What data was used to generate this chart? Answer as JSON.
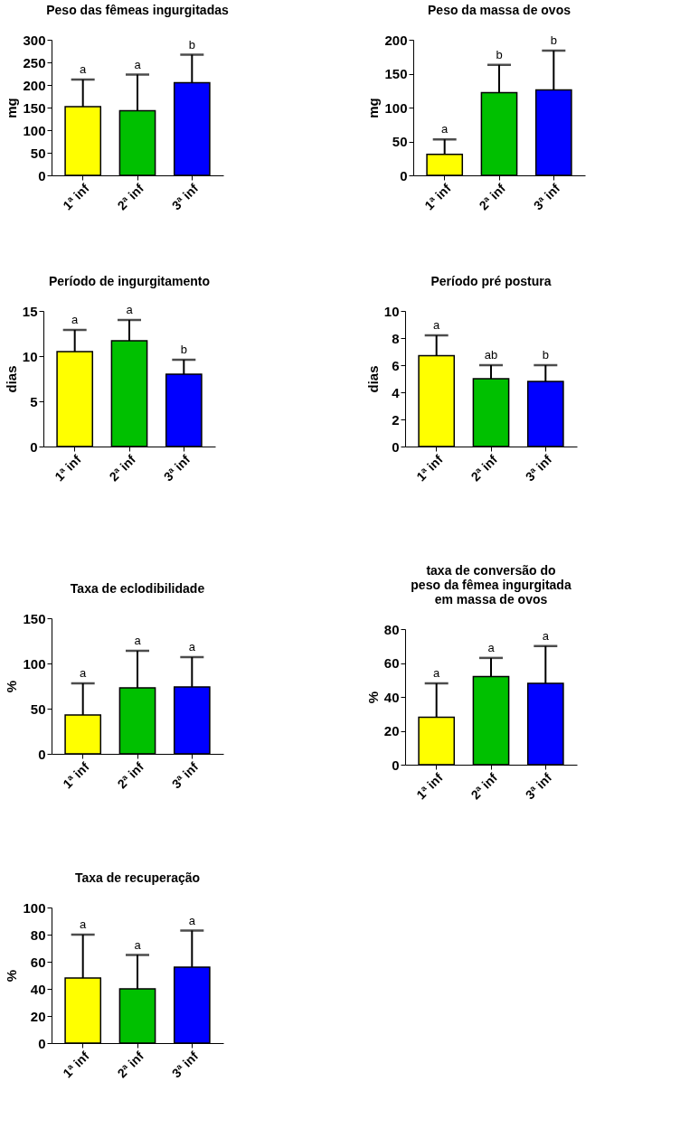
{
  "chart_data": [
    {
      "type": "bar",
      "title": "Peso das fêmeas ingurgitadas",
      "ylabel": "mg",
      "categories": [
        "1ª inf",
        "2ª inf",
        "3ª inf"
      ],
      "values": [
        152,
        143,
        205
      ],
      "colors": [
        "#ffff00",
        "#00c000",
        "#0000ff"
      ],
      "errors": [
        [
          152,
          212
        ],
        [
          143,
          223
        ],
        [
          205,
          267
        ]
      ],
      "ylim": [
        0,
        300
      ],
      "yticks": [
        0,
        50,
        100,
        150,
        200,
        250,
        300
      ],
      "annotations": [
        {
          "text": "a",
          "x": "1ª inf",
          "y": 212
        },
        {
          "text": "a",
          "x": "2ª inf",
          "y": 223
        },
        {
          "text": "b",
          "x": "3ª inf",
          "y": 267
        }
      ]
    },
    {
      "type": "bar",
      "title": "Peso da massa de ovos",
      "ylabel": "mg",
      "categories": [
        "1ª inf",
        "2ª inf",
        "3ª inf"
      ],
      "values": [
        31,
        122,
        126
      ],
      "colors": [
        "#ffff00",
        "#00c000",
        "#0000ff"
      ],
      "errors": [
        [
          31,
          53
        ],
        [
          122,
          163
        ],
        [
          126,
          184
        ]
      ],
      "ylim": [
        0,
        200
      ],
      "yticks": [
        0,
        50,
        100,
        150,
        200
      ],
      "annotations": [
        {
          "text": "a",
          "x": "1ª inf",
          "y": 53
        },
        {
          "text": "b",
          "x": "2ª inf",
          "y": 163
        },
        {
          "text": "b",
          "x": "3ª inf",
          "y": 184
        }
      ]
    },
    {
      "type": "bar",
      "title": "Período de ingurgitamento",
      "ylabel": "dias",
      "categories": [
        "1ª inf",
        "2ª inf",
        "3ª inf"
      ],
      "values": [
        10.5,
        11.7,
        8.0
      ],
      "colors": [
        "#ffff00",
        "#00c000",
        "#0000ff"
      ],
      "errors": [
        [
          10.5,
          12.9
        ],
        [
          11.7,
          14.0
        ],
        [
          8.0,
          9.6
        ]
      ],
      "ylim": [
        0,
        15
      ],
      "yticks": [
        0,
        5,
        10,
        15
      ],
      "annotations": [
        {
          "text": "a",
          "x": "1ª inf",
          "y": 12.9
        },
        {
          "text": "a",
          "x": "2ª inf",
          "y": 14.0
        },
        {
          "text": "b",
          "x": "3ª inf",
          "y": 9.6
        }
      ]
    },
    {
      "type": "bar",
      "title": "Período pré postura",
      "ylabel": "dias",
      "categories": [
        "1ª inf",
        "2ª inf",
        "3ª inf"
      ],
      "values": [
        6.7,
        5.0,
        4.8
      ],
      "colors": [
        "#ffff00",
        "#00c000",
        "#0000ff"
      ],
      "errors": [
        [
          6.7,
          8.2
        ],
        [
          5.0,
          6.0
        ],
        [
          4.8,
          6.0
        ]
      ],
      "ylim": [
        0,
        10
      ],
      "yticks": [
        0,
        2,
        4,
        6,
        8,
        10
      ],
      "annotations": [
        {
          "text": "a",
          "x": "1ª inf",
          "y": 8.2
        },
        {
          "text": "ab",
          "x": "2ª inf",
          "y": 6.0
        },
        {
          "text": "b",
          "x": "3ª inf",
          "y": 6.0
        }
      ]
    },
    {
      "type": "bar",
      "title": "Taxa de eclodibilidade",
      "ylabel": "%",
      "categories": [
        "1ª inf",
        "2ª inf",
        "3ª inf"
      ],
      "values": [
        43,
        73,
        74
      ],
      "colors": [
        "#ffff00",
        "#00c000",
        "#0000ff"
      ],
      "errors": [
        [
          43,
          78
        ],
        [
          73,
          114
        ],
        [
          74,
          107
        ]
      ],
      "ylim": [
        0,
        150
      ],
      "yticks": [
        0,
        50,
        100,
        150
      ],
      "annotations": [
        {
          "text": "a",
          "x": "1ª inf",
          "y": 78
        },
        {
          "text": "a",
          "x": "2ª inf",
          "y": 114
        },
        {
          "text": "a",
          "x": "3ª inf",
          "y": 107
        }
      ]
    },
    {
      "type": "bar",
      "title": "taxa de conversão do\npeso da fêmea ingurgitada\nem massa de ovos",
      "ylabel": "%",
      "categories": [
        "1ª inf",
        "2ª inf",
        "3ª inf"
      ],
      "values": [
        28,
        52,
        48
      ],
      "colors": [
        "#ffff00",
        "#00c000",
        "#0000ff"
      ],
      "errors": [
        [
          28,
          48
        ],
        [
          52,
          63
        ],
        [
          48,
          70
        ]
      ],
      "ylim": [
        0,
        80
      ],
      "yticks": [
        0,
        20,
        40,
        60,
        80
      ],
      "annotations": [
        {
          "text": "a",
          "x": "1ª inf",
          "y": 48
        },
        {
          "text": "a",
          "x": "2ª inf",
          "y": 63
        },
        {
          "text": "a",
          "x": "3ª inf",
          "y": 70
        }
      ]
    },
    {
      "type": "bar",
      "title": "Taxa de recuperação",
      "ylabel": "%",
      "categories": [
        "1ª inf",
        "2ª inf",
        "3ª inf"
      ],
      "values": [
        48,
        40,
        56
      ],
      "colors": [
        "#ffff00",
        "#00c000",
        "#0000ff"
      ],
      "errors": [
        [
          48,
          80
        ],
        [
          40,
          65
        ],
        [
          56,
          83
        ]
      ],
      "ylim": [
        0,
        100
      ],
      "yticks": [
        0,
        20,
        40,
        60,
        80,
        100
      ],
      "annotations": [
        {
          "text": "a",
          "x": "1ª inf",
          "y": 80
        },
        {
          "text": "a",
          "x": "2ª inf",
          "y": 65
        },
        {
          "text": "a",
          "x": "3ª inf",
          "y": 83
        }
      ]
    }
  ]
}
